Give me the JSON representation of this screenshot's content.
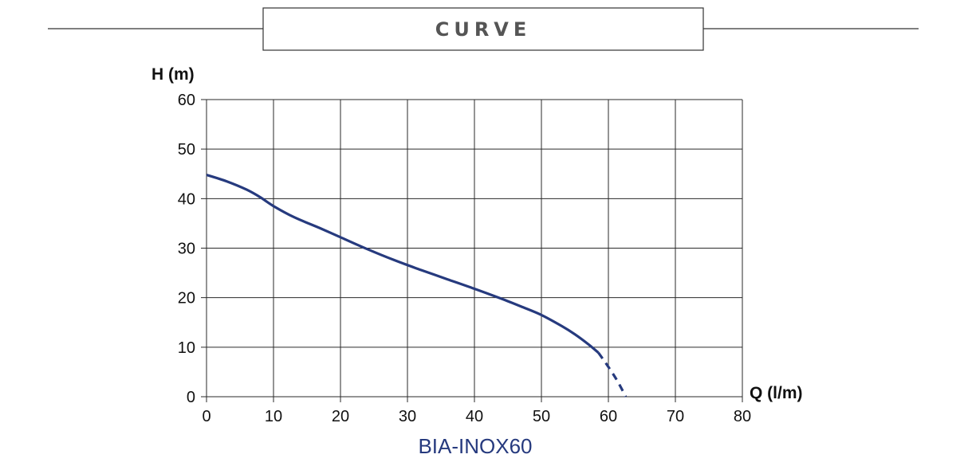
{
  "header": {
    "title": "CURVE"
  },
  "colors": {
    "curve": "#263a7e",
    "grid": "#2a2a2a",
    "header_text": "#555555",
    "caption": "#263a7e"
  },
  "chart_data": {
    "type": "line",
    "title": "",
    "xlabel": "Q (l/m)",
    "ylabel": "H (m)",
    "xlim": [
      0,
      80
    ],
    "ylim": [
      0,
      60
    ],
    "x_ticks": [
      0,
      10,
      20,
      30,
      40,
      50,
      60,
      70,
      80
    ],
    "y_ticks": [
      0,
      10,
      20,
      30,
      40,
      50,
      60
    ],
    "grid": true,
    "series": [
      {
        "name": "BIA-INOX60",
        "style": "solid",
        "x": [
          0,
          3,
          6,
          8,
          10,
          13,
          17,
          20,
          24,
          28,
          32,
          36,
          40,
          44,
          47,
          50,
          53,
          55,
          57,
          58.5
        ],
        "y": [
          44.8,
          43.5,
          41.8,
          40.3,
          38.5,
          36.3,
          34.0,
          32.2,
          29.8,
          27.6,
          25.6,
          23.7,
          21.8,
          19.8,
          18.2,
          16.5,
          14.3,
          12.6,
          10.6,
          8.9
        ]
      },
      {
        "name": "",
        "style": "dashed",
        "x": [
          58.5,
          59.5,
          60.5,
          61.5,
          62.6
        ],
        "y": [
          8.9,
          7.0,
          5.0,
          2.8,
          0
        ]
      }
    ],
    "caption": "BIA-INOX60"
  }
}
